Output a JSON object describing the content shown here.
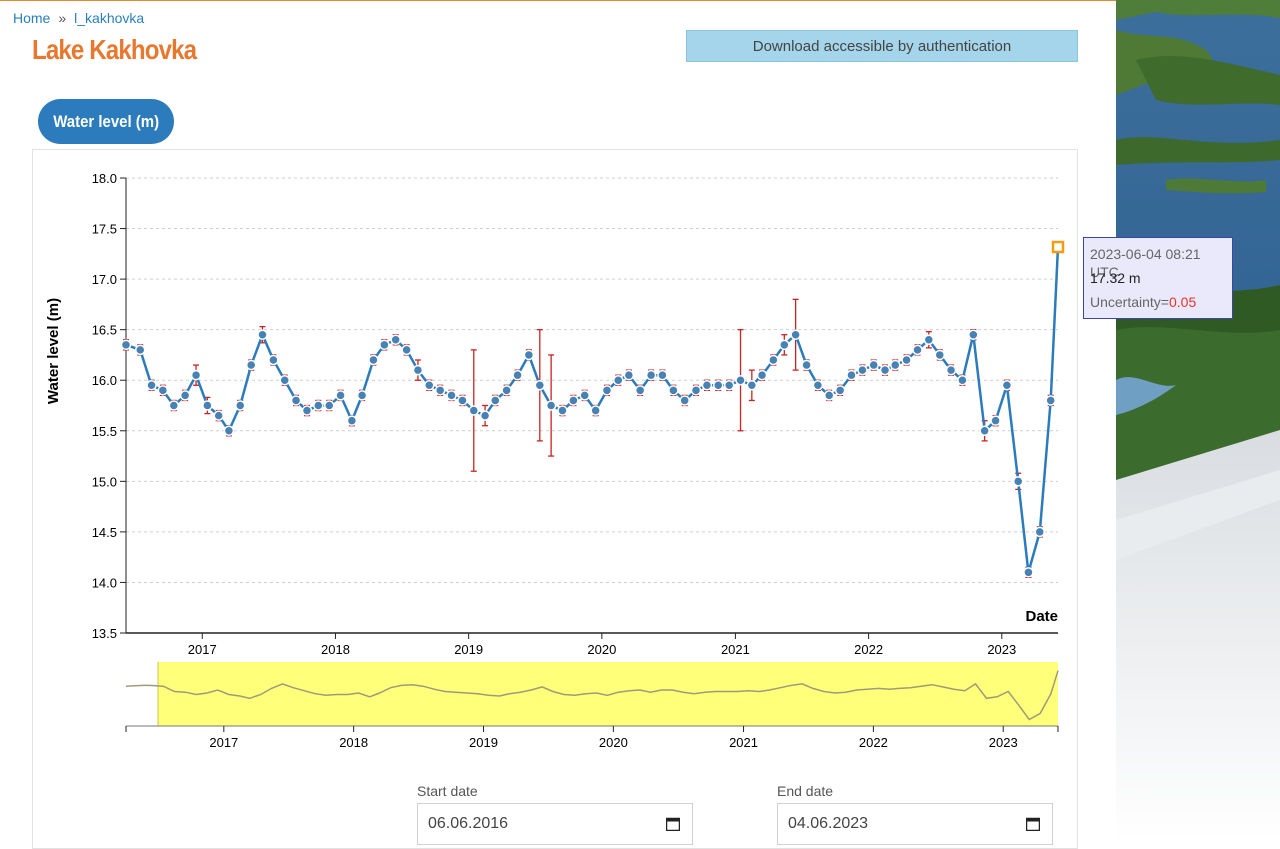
{
  "breadcrumb": {
    "home": "Home",
    "separator": "»",
    "current": "l_kakhovka"
  },
  "page": {
    "title": "Lake Kakhovka",
    "download_label": "Download accessible by authentication",
    "tab_label": "Water level (m)"
  },
  "tooltip": {
    "date": "2023-06-04 08:21 UTC",
    "value": "17.32 m",
    "uncertainty_label": "Uncertainty=",
    "uncertainty_value": "0.05"
  },
  "date_filter": {
    "start_label": "Start date",
    "start_value": "06.06.2016",
    "end_label": "End date",
    "end_value": "04.06.2023"
  },
  "colors": {
    "accent": "#e8782f",
    "line": "#2b7bbd",
    "marker": "#4682b4",
    "error_bar": "#cc2222",
    "navigator": "#ffff7a",
    "link": "#2a7fb8"
  },
  "chart_data": {
    "type": "line",
    "title": "Lake Kakhovka",
    "xlabel": "Date",
    "ylabel": "Water level (m)",
    "ylim": [
      13.5,
      18.0
    ],
    "yticks": [
      "13.5",
      "14.0",
      "14.5",
      "15.0",
      "15.5",
      "16.0",
      "16.5",
      "17.0",
      "17.5",
      "18.0"
    ],
    "xticks": [
      "2017",
      "2018",
      "2019",
      "2020",
      "2021",
      "2022",
      "2023"
    ],
    "x_range": [
      "2016-06-06",
      "2023-06-04"
    ],
    "error_bars": true,
    "series": [
      {
        "name": "Water level (m)",
        "x": [
          "2016-06",
          "2016-07",
          "2016-08",
          "2016-09",
          "2016-10",
          "2016-11",
          "2016-12",
          "2017-01",
          "2017-02",
          "2017-03",
          "2017-04",
          "2017-05",
          "2017-06",
          "2017-07",
          "2017-08",
          "2017-09",
          "2017-10",
          "2017-11",
          "2017-12",
          "2018-01",
          "2018-02",
          "2018-03",
          "2018-04",
          "2018-05",
          "2018-06",
          "2018-07",
          "2018-08",
          "2018-09",
          "2018-10",
          "2018-11",
          "2018-12",
          "2019-01",
          "2019-02",
          "2019-03",
          "2019-04",
          "2019-05",
          "2019-06",
          "2019-07",
          "2019-08",
          "2019-09",
          "2019-10",
          "2019-11",
          "2019-12",
          "2020-01",
          "2020-02",
          "2020-03",
          "2020-04",
          "2020-05",
          "2020-06",
          "2020-07",
          "2020-08",
          "2020-09",
          "2020-10",
          "2020-11",
          "2020-12",
          "2021-01",
          "2021-02",
          "2021-03",
          "2021-04",
          "2021-05",
          "2021-06",
          "2021-07",
          "2021-08",
          "2021-09",
          "2021-10",
          "2021-11",
          "2021-12",
          "2022-01",
          "2022-02",
          "2022-03",
          "2022-04",
          "2022-05",
          "2022-06",
          "2022-07",
          "2022-08",
          "2022-09",
          "2022-10",
          "2022-11",
          "2022-12",
          "2023-01",
          "2023-02",
          "2023-03",
          "2023-04",
          "2023-05",
          "2023-06"
        ],
        "y": [
          16.35,
          16.3,
          15.95,
          15.9,
          15.75,
          15.85,
          16.05,
          15.75,
          15.65,
          15.5,
          15.75,
          16.15,
          16.45,
          16.2,
          16.0,
          15.8,
          15.7,
          15.75,
          15.75,
          15.85,
          15.6,
          15.85,
          16.2,
          16.35,
          16.4,
          16.3,
          16.1,
          15.95,
          15.9,
          15.85,
          15.8,
          15.7,
          15.65,
          15.8,
          15.9,
          16.05,
          16.25,
          15.95,
          15.75,
          15.7,
          15.8,
          15.85,
          15.7,
          15.9,
          16.0,
          16.05,
          15.9,
          16.05,
          16.05,
          15.9,
          15.8,
          15.9,
          15.95,
          15.95,
          15.95,
          16.0,
          15.95,
          16.05,
          16.2,
          16.35,
          16.45,
          16.15,
          15.95,
          15.85,
          15.9,
          16.05,
          16.1,
          16.15,
          16.1,
          16.15,
          16.2,
          16.3,
          16.4,
          16.25,
          16.1,
          16.0,
          16.45,
          15.5,
          15.6,
          15.95,
          15.0,
          14.1,
          14.5,
          15.8,
          17.32
        ],
        "uncertainty": [
          0.05,
          0.05,
          0.05,
          0.05,
          0.05,
          0.05,
          0.1,
          0.08,
          0.05,
          0.05,
          0.05,
          0.05,
          0.08,
          0.05,
          0.05,
          0.05,
          0.05,
          0.05,
          0.05,
          0.05,
          0.05,
          0.05,
          0.05,
          0.05,
          0.05,
          0.05,
          0.1,
          0.05,
          0.05,
          0.05,
          0.05,
          0.6,
          0.1,
          0.05,
          0.05,
          0.05,
          0.05,
          0.55,
          0.5,
          0.05,
          0.05,
          0.05,
          0.05,
          0.05,
          0.05,
          0.05,
          0.05,
          0.05,
          0.05,
          0.05,
          0.05,
          0.05,
          0.05,
          0.05,
          0.05,
          0.5,
          0.15,
          0.05,
          0.05,
          0.1,
          0.35,
          0.05,
          0.05,
          0.05,
          0.05,
          0.05,
          0.05,
          0.05,
          0.05,
          0.05,
          0.05,
          0.05,
          0.08,
          0.05,
          0.05,
          0.05,
          0.05,
          0.1,
          0.05,
          0.05,
          0.08,
          0.05,
          0.05,
          0.05,
          0.05
        ]
      }
    ]
  }
}
